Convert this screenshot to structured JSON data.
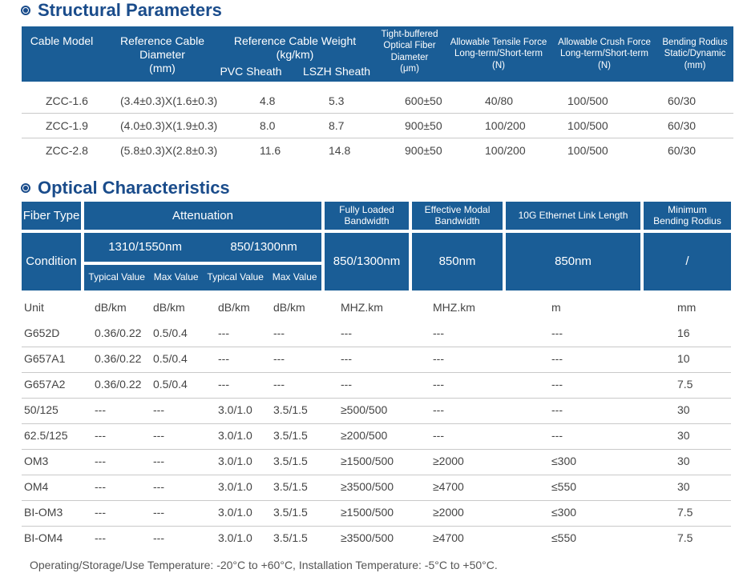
{
  "structural": {
    "title": "Structural Parameters",
    "headers": {
      "cable_model": "Cable Model",
      "ref_diameter": [
        "Reference Cable",
        "Diameter",
        "(mm)"
      ],
      "ref_weight": [
        "Reference Cable Weight",
        "(kg/km)"
      ],
      "pvc": "PVC Sheath",
      "lszh": "LSZH Sheath",
      "tight": [
        "Tight-buffered",
        "Optical Fiber",
        "Diameter",
        "(μm)"
      ],
      "tensile": [
        "Allowable Tensile Force",
        "Long-term/Short-term",
        "(N)"
      ],
      "crush": [
        "Allowable Crush Force",
        "Long-term/Short-term",
        "(N)"
      ],
      "bending": [
        "Bending Rodius",
        "Static/Dynamic",
        "(mm)"
      ]
    },
    "rows": [
      [
        "ZCC-1.6",
        "(3.4±0.3)X(1.6±0.3)",
        "4.8",
        "5.3",
        "600±50",
        "40/80",
        "100/500",
        "60/30"
      ],
      [
        "ZCC-1.9",
        "(4.0±0.3)X(1.9±0.3)",
        "8.0",
        "8.7",
        "900±50",
        "100/200",
        "100/500",
        "60/30"
      ],
      [
        "ZCC-2.8",
        "(5.8±0.3)X(2.8±0.3)",
        "11.6",
        "14.8",
        "900±50",
        "100/200",
        "100/500",
        "60/30"
      ]
    ]
  },
  "optical": {
    "title": "Optical Characteristics",
    "headers": {
      "fiber_type": "Fiber Type",
      "attenuation": "Attenuation",
      "fully_loaded": [
        "Fully Loaded",
        "Bandwidth"
      ],
      "effective_modal": [
        "Effective Modal",
        "Bandwidth"
      ],
      "link_length": "10G Ethernet Link Length",
      "min_bending": [
        "Minimum",
        "Bending Rodius"
      ],
      "condition": "Condition",
      "w1310": "1310/1550nm",
      "w850": "850/1300nm",
      "typical1": "Typical Value",
      "max1": "Max Value",
      "typical2": "Typical Value",
      "max2": "Max Value",
      "cond_fully": "850/1300nm",
      "cond_modal": "850nm",
      "cond_link": "850nm",
      "cond_bend": "/"
    },
    "rows": [
      [
        "Unit",
        "dB/km",
        "dB/km",
        "dB/km",
        "dB/km",
        "MHZ.km",
        "MHZ.km",
        "m",
        "mm"
      ],
      [
        "G652D",
        "0.36/0.22",
        "0.5/0.4",
        "---",
        "---",
        "---",
        "---",
        "---",
        "16"
      ],
      [
        "G657A1",
        "0.36/0.22",
        "0.5/0.4",
        "---",
        "---",
        "---",
        "---",
        "---",
        "10"
      ],
      [
        "G657A2",
        "0.36/0.22",
        "0.5/0.4",
        "---",
        "---",
        "---",
        "---",
        "---",
        "7.5"
      ],
      [
        "50/125",
        "---",
        "---",
        "3.0/1.0",
        "3.5/1.5",
        "≥500/500",
        "---",
        "---",
        "30"
      ],
      [
        "62.5/125",
        "---",
        "---",
        "3.0/1.0",
        "3.5/1.5",
        "≥200/500",
        "---",
        "---",
        "30"
      ],
      [
        "OM3",
        "---",
        "---",
        "3.0/1.0",
        "3.5/1.5",
        "≥1500/500",
        "≥2000",
        "≤300",
        "30"
      ],
      [
        "OM4",
        "---",
        "---",
        "3.0/1.0",
        "3.5/1.5",
        "≥3500/500",
        "≥4700",
        "≤550",
        "30"
      ],
      [
        "BI-OM3",
        "---",
        "---",
        "3.0/1.0",
        "3.5/1.5",
        "≥1500/500",
        "≥2000",
        "≤300",
        "7.5"
      ],
      [
        "BI-OM4",
        "---",
        "---",
        "3.0/1.0",
        "3.5/1.5",
        "≥3500/500",
        "≥4700",
        "≤550",
        "7.5"
      ]
    ]
  },
  "note": "Operating/Storage/Use Temperature: -20°C to +60°C, Installation Temperature: -5°C to +50°C."
}
